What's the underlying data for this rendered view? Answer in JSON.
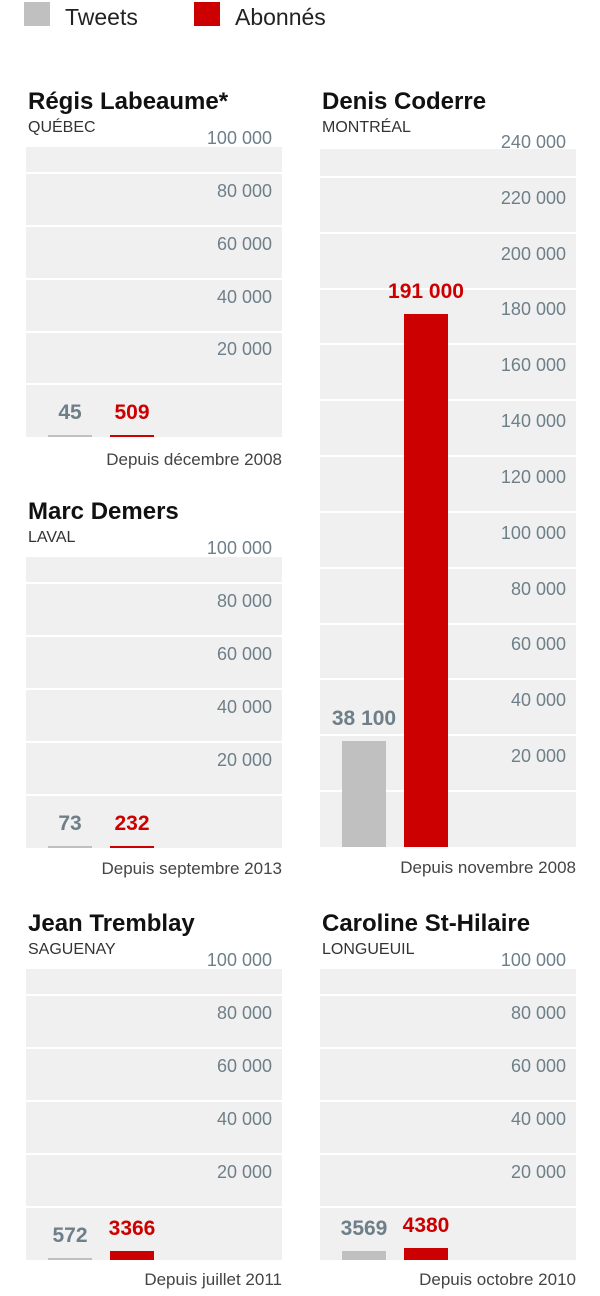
{
  "legend": {
    "tweets_label": "Tweets",
    "abonnes_label": "Abonnés",
    "tweets_color": "#c0c0c0",
    "abonnes_color": "#cc0000"
  },
  "colors": {
    "tweets_value_text": "#6e7f89",
    "abonnes_value_text": "#cc0000"
  },
  "chart_data": [
    {
      "type": "bar",
      "title": "Régis Labeaume*",
      "subtitle": "QUÉBEC",
      "categories": [
        "Tweets",
        "Abonnés"
      ],
      "values": [
        45,
        509
      ],
      "value_labels": [
        "45",
        "509"
      ],
      "ylim": [
        0,
        110000
      ],
      "ticks": [
        20000,
        40000,
        60000,
        80000,
        100000
      ],
      "tick_labels": [
        "20 000",
        "40 000",
        "60 000",
        "80 000",
        "100 000"
      ],
      "note": "Depuis décembre 2008",
      "grid": true
    },
    {
      "type": "bar",
      "title": "Denis Coderre",
      "subtitle": "MONTRÉAL",
      "categories": [
        "Tweets",
        "Abonnés"
      ],
      "values": [
        38100,
        191000
      ],
      "value_labels": [
        "38 100",
        "191 000"
      ],
      "ylim": [
        0,
        250000
      ],
      "ticks": [
        20000,
        40000,
        60000,
        80000,
        100000,
        120000,
        140000,
        160000,
        180000,
        200000,
        220000,
        240000
      ],
      "tick_labels": [
        "20 000",
        "40 000",
        "60 000",
        "80 000",
        "100 000",
        "120 000",
        "140 000",
        "160 000",
        "180 000",
        "200 000",
        "220 000",
        "240 000"
      ],
      "note": "Depuis novembre 2008",
      "grid": true
    },
    {
      "type": "bar",
      "title": "Marc Demers",
      "subtitle": "LAVAL",
      "categories": [
        "Tweets",
        "Abonnés"
      ],
      "values": [
        73,
        232
      ],
      "value_labels": [
        "73",
        "232"
      ],
      "ylim": [
        0,
        110000
      ],
      "ticks": [
        20000,
        40000,
        60000,
        80000,
        100000
      ],
      "tick_labels": [
        "20 000",
        "40 000",
        "60 000",
        "80 000",
        "100 000"
      ],
      "note": "Depuis septembre 2013",
      "grid": true
    },
    {
      "type": "bar",
      "title": "Jean Tremblay",
      "subtitle": "SAGUENAY",
      "categories": [
        "Tweets",
        "Abonnés"
      ],
      "values": [
        572,
        3366
      ],
      "value_labels": [
        "572",
        "3366"
      ],
      "ylim": [
        0,
        110000
      ],
      "ticks": [
        20000,
        40000,
        60000,
        80000,
        100000
      ],
      "tick_labels": [
        "20 000",
        "40 000",
        "60 000",
        "80 000",
        "100 000"
      ],
      "note": "Depuis juillet 2011",
      "grid": true
    },
    {
      "type": "bar",
      "title": "Caroline St-Hilaire",
      "subtitle": "LONGUEUIL",
      "categories": [
        "Tweets",
        "Abonnés"
      ],
      "values": [
        3569,
        4380
      ],
      "value_labels": [
        "3569",
        "4380"
      ],
      "ylim": [
        0,
        110000
      ],
      "ticks": [
        20000,
        40000,
        60000,
        80000,
        100000
      ],
      "tick_labels": [
        "20 000",
        "40 000",
        "60 000",
        "80 000",
        "100 000"
      ],
      "note": "Depuis octobre 2010",
      "grid": true
    }
  ]
}
